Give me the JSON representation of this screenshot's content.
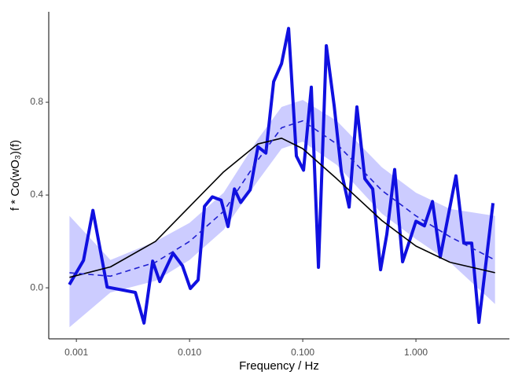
{
  "chart_data": {
    "type": "line",
    "x_label": "Frequency / Hz",
    "y_label": "f * Co(wO₃)(f)",
    "log_x": true,
    "xlim": [
      0.00057,
      6.7
    ],
    "ylim": [
      -0.22,
      1.19
    ],
    "xticks": [
      {
        "value": 0.001,
        "label": "0.001"
      },
      {
        "value": 0.01,
        "label": "0.010"
      },
      {
        "value": 0.1,
        "label": "0.100"
      },
      {
        "value": 1,
        "label": "1.000"
      }
    ],
    "yticks": [
      {
        "value": 0,
        "label": "0.0"
      },
      0.4,
      0.8
    ],
    "band": {
      "color": "#ccccff",
      "x": [
        0.00087,
        0.002,
        0.005,
        0.01,
        0.02,
        0.04,
        0.065,
        0.1,
        0.2,
        0.5,
        1,
        2,
        5
      ],
      "lower": [
        -0.17,
        -0.02,
        0.03,
        0.12,
        0.25,
        0.46,
        0.6,
        0.63,
        0.53,
        0.32,
        0.21,
        0.11,
        -0.07
      ],
      "upper": [
        0.31,
        0.12,
        0.2,
        0.28,
        0.41,
        0.64,
        0.78,
        0.81,
        0.72,
        0.52,
        0.41,
        0.34,
        0.31
      ]
    },
    "series": [
      {
        "color": "#1010e0",
        "width": 4,
        "dashed": false,
        "x": [
          0.000866,
          0.001155,
          0.0014,
          0.00187,
          0.00332,
          0.00396,
          0.00472,
          0.00545,
          0.00715,
          0.00866,
          0.01016,
          0.0119,
          0.01355,
          0.0159,
          0.019,
          0.0219,
          0.0249,
          0.0283,
          0.0343,
          0.0402,
          0.0472,
          0.0553,
          0.0649,
          0.075,
          0.0879,
          0.1016,
          0.119,
          0.1377,
          0.1615,
          0.1897,
          0.219,
          0.257,
          0.301,
          0.354,
          0.415,
          0.487,
          0.553,
          0.649,
          0.762,
          0.865,
          1.0,
          1.19,
          1.4,
          1.64,
          2.26,
          2.65,
          3.11,
          3.6,
          4.8
        ],
        "values": [
          0.014,
          0.118,
          0.334,
          0.003,
          -0.02,
          -0.152,
          0.115,
          0.027,
          0.149,
          0.095,
          -0.003,
          0.034,
          0.351,
          0.392,
          0.378,
          0.264,
          0.426,
          0.368,
          0.422,
          0.608,
          0.581,
          0.889,
          0.966,
          1.118,
          0.568,
          0.507,
          0.865,
          0.088,
          1.044,
          0.784,
          0.503,
          0.348,
          0.78,
          0.47,
          0.426,
          0.078,
          0.23,
          0.51,
          0.112,
          0.193,
          0.287,
          0.267,
          0.372,
          0.132,
          0.483,
          0.193,
          0.193,
          -0.149,
          0.365
        ]
      },
      {
        "color": "#000000",
        "width": 1.6,
        "dashed": false,
        "x": [
          0.00087,
          0.002,
          0.005,
          0.01,
          0.02,
          0.04,
          0.065,
          0.1,
          0.2,
          0.5,
          1,
          2,
          5
        ],
        "values": [
          0.045,
          0.09,
          0.2,
          0.35,
          0.5,
          0.62,
          0.645,
          0.6,
          0.47,
          0.29,
          0.18,
          0.11,
          0.065
        ]
      },
      {
        "color": "#1f1fd0",
        "width": 1.6,
        "dashed": true,
        "x": [
          0.00087,
          0.002,
          0.005,
          0.01,
          0.02,
          0.04,
          0.065,
          0.1,
          0.2,
          0.5,
          1,
          2,
          5
        ],
        "values": [
          0.065,
          0.05,
          0.11,
          0.2,
          0.33,
          0.55,
          0.69,
          0.72,
          0.62,
          0.42,
          0.31,
          0.22,
          0.12
        ]
      }
    ]
  }
}
